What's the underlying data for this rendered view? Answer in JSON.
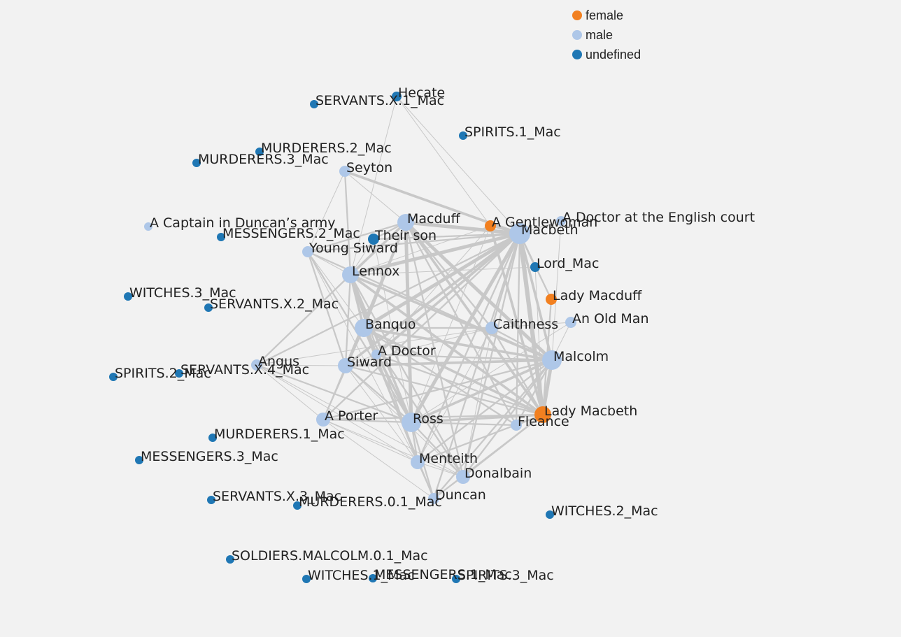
{
  "colors": {
    "female": "#f28020",
    "male": "#aec7e8",
    "undefined": "#1f77b4",
    "edge": "#c8c8c8",
    "background": "#f2f2f2"
  },
  "legend": [
    {
      "group": "female",
      "label": "female"
    },
    {
      "group": "male",
      "label": "male"
    },
    {
      "group": "undefined",
      "label": "undefined"
    }
  ],
  "nodes": [
    {
      "id": "Hecate",
      "label": "Hecate",
      "group": "undefined"
    },
    {
      "id": "SERVANTS.X.1_Mac",
      "label": "SERVANTS.X.1_Mac",
      "group": "undefined"
    },
    {
      "id": "SPIRITS.1_Mac",
      "label": "SPIRITS.1_Mac",
      "group": "undefined"
    },
    {
      "id": "MURDERERS.2_Mac",
      "label": "MURDERERS.2_Mac",
      "group": "undefined"
    },
    {
      "id": "MURDERERS.3_Mac",
      "label": "MURDERERS.3_Mac",
      "group": "undefined"
    },
    {
      "id": "Seyton",
      "label": "Seyton",
      "group": "male"
    },
    {
      "id": "A Captain in Duncan's army",
      "label": "A Captain in Duncan’s army",
      "group": "male"
    },
    {
      "id": "MESSENGERS.2_Mac",
      "label": "MESSENGERS.2_Mac",
      "group": "undefined"
    },
    {
      "id": "Macduff",
      "label": "Macduff",
      "group": "male"
    },
    {
      "id": "Their son",
      "label": "Their son",
      "group": "undefined"
    },
    {
      "id": "A Gentlewoman",
      "label": "A Gentlewoman",
      "group": "female"
    },
    {
      "id": "Macbeth",
      "label": "Macbeth",
      "group": "male"
    },
    {
      "id": "A Doctor at the English court",
      "label": "A Doctor at the English court",
      "group": "male"
    },
    {
      "id": "Young Siward",
      "label": "Young Siward",
      "group": "male"
    },
    {
      "id": "Lennox",
      "label": "Lennox",
      "group": "male"
    },
    {
      "id": "Lord_Mac",
      "label": "Lord_Mac",
      "group": "undefined"
    },
    {
      "id": "WITCHES.3_Mac",
      "label": "WITCHES.3_Mac",
      "group": "undefined"
    },
    {
      "id": "SERVANTS.X.2_Mac",
      "label": "SERVANTS.X.2_Mac",
      "group": "undefined"
    },
    {
      "id": "Lady Macduff",
      "label": "Lady Macduff",
      "group": "female"
    },
    {
      "id": "Banquo",
      "label": "Banquo",
      "group": "male"
    },
    {
      "id": "Caithness",
      "label": "Caithness",
      "group": "male"
    },
    {
      "id": "An Old Man",
      "label": "An Old Man",
      "group": "male"
    },
    {
      "id": "A Doctor",
      "label": "A Doctor",
      "group": "male"
    },
    {
      "id": "Malcolm",
      "label": "Malcolm",
      "group": "male"
    },
    {
      "id": "Angus",
      "label": "Angus",
      "group": "male"
    },
    {
      "id": "Siward",
      "label": "Siward",
      "group": "male"
    },
    {
      "id": "SPIRITS.2_Mac",
      "label": "SPIRITS.2_Mac",
      "group": "undefined"
    },
    {
      "id": "SERVANTS.X.4_Mac",
      "label": "SERVANTS.X.4_Mac",
      "group": "undefined"
    },
    {
      "id": "Lady Macbeth",
      "label": "Lady Macbeth",
      "group": "female"
    },
    {
      "id": "A Porter",
      "label": "A Porter",
      "group": "male"
    },
    {
      "id": "Ross",
      "label": "Ross",
      "group": "male"
    },
    {
      "id": "Fleance",
      "label": "Fleance",
      "group": "male"
    },
    {
      "id": "MURDERERS.1_Mac",
      "label": "MURDERERS.1_Mac",
      "group": "undefined"
    },
    {
      "id": "MESSENGERS.3_Mac",
      "label": "MESSENGERS.3_Mac",
      "group": "undefined"
    },
    {
      "id": "Menteith",
      "label": "Menteith",
      "group": "male"
    },
    {
      "id": "Donalbain",
      "label": "Donalbain",
      "group": "male"
    },
    {
      "id": "Duncan",
      "label": "Duncan",
      "group": "male"
    },
    {
      "id": "SERVANTS.X.3_Mac",
      "label": "SERVANTS.X.3_Mac",
      "group": "undefined"
    },
    {
      "id": "MURDERERS.0.1_Mac",
      "label": "MURDERERS.0.1_Mac",
      "group": "undefined"
    },
    {
      "id": "WITCHES.2_Mac",
      "label": "WITCHES.2_Mac",
      "group": "undefined"
    },
    {
      "id": "SOLDIERS.MALCOLM.0.1_Mac",
      "label": "SOLDIERS.MALCOLM.0.1_Mac",
      "group": "undefined"
    },
    {
      "id": "WITCHES.1_Mac",
      "label": "WITCHES.1_Mac",
      "group": "undefined"
    },
    {
      "id": "MESSENGERS.1_Mac",
      "label": "MESSENGERS.1_Mac",
      "group": "undefined"
    },
    {
      "id": "SPIRITS.3_Mac",
      "label": "SPIRITS.3_Mac",
      "group": "undefined"
    }
  ],
  "links": [
    [
      "Macbeth",
      "Lady Macbeth",
      5
    ],
    [
      "Macbeth",
      "Banquo",
      4
    ],
    [
      "Macbeth",
      "Macduff",
      4
    ],
    [
      "Macbeth",
      "Ross",
      4
    ],
    [
      "Macbeth",
      "Malcolm",
      3
    ],
    [
      "Macbeth",
      "Lennox",
      4
    ],
    [
      "Macbeth",
      "Seyton",
      3
    ],
    [
      "Macbeth",
      "Siward",
      3
    ],
    [
      "Macbeth",
      "A Doctor",
      3
    ],
    [
      "Macbeth",
      "Fleance",
      2
    ],
    [
      "Macbeth",
      "Donalbain",
      2
    ],
    [
      "Macbeth",
      "Menteith",
      2
    ],
    [
      "Macbeth",
      "Angus",
      2
    ],
    [
      "Macbeth",
      "Caithness",
      2
    ],
    [
      "Macbeth",
      "A Gentlewoman",
      2
    ],
    [
      "Macbeth",
      "Young Siward",
      2
    ],
    [
      "Macbeth",
      "Hecate",
      1
    ],
    [
      "Macbeth",
      "Duncan",
      2
    ],
    [
      "Macbeth",
      "A Porter",
      2
    ],
    [
      "Macbeth",
      "Their son",
      2
    ],
    [
      "Macbeth",
      "Lord_Mac",
      2
    ],
    [
      "Macbeth",
      "A Doctor at the English court",
      1
    ],
    [
      "Macbeth",
      "Lady Macduff",
      2
    ],
    [
      "Malcolm",
      "Macduff",
      4
    ],
    [
      "Malcolm",
      "Ross",
      3
    ],
    [
      "Malcolm",
      "Lennox",
      3
    ],
    [
      "Malcolm",
      "Siward",
      3
    ],
    [
      "Malcolm",
      "Banquo",
      3
    ],
    [
      "Malcolm",
      "Lady Macbeth",
      4
    ],
    [
      "Malcolm",
      "Donalbain",
      2
    ],
    [
      "Malcolm",
      "Menteith",
      2
    ],
    [
      "Malcolm",
      "Caithness",
      2
    ],
    [
      "Malcolm",
      "A Doctor",
      2
    ],
    [
      "Malcolm",
      "A Doctor at the English court",
      1
    ],
    [
      "Malcolm",
      "Young Siward",
      2
    ],
    [
      "Malcolm",
      "Duncan",
      2
    ],
    [
      "Malcolm",
      "A Porter",
      2
    ],
    [
      "Malcolm",
      "Fleance",
      2
    ],
    [
      "Banquo",
      "Lady Macbeth",
      3
    ],
    [
      "Banquo",
      "Ross",
      3
    ],
    [
      "Banquo",
      "Lennox",
      3
    ],
    [
      "Banquo",
      "Macduff",
      3
    ],
    [
      "Banquo",
      "Fleance",
      2
    ],
    [
      "Banquo",
      "Donalbain",
      2
    ],
    [
      "Banquo",
      "A Porter",
      2
    ],
    [
      "Banquo",
      "Siward",
      2
    ],
    [
      "Banquo",
      "Caithness",
      2
    ],
    [
      "Banquo",
      "Menteith",
      2
    ],
    [
      "Banquo",
      "Duncan",
      2
    ],
    [
      "Ross",
      "Macduff",
      4
    ],
    [
      "Ross",
      "Lennox",
      3
    ],
    [
      "Ross",
      "Lady Macbeth",
      3
    ],
    [
      "Ross",
      "Siward",
      2
    ],
    [
      "Ross",
      "Menteith",
      2
    ],
    [
      "Ross",
      "Donalbain",
      2
    ],
    [
      "Ross",
      "Angus",
      2
    ],
    [
      "Ross",
      "A Porter",
      2
    ],
    [
      "Ross",
      "A Doctor",
      2
    ],
    [
      "Ross",
      "Fleance",
      2
    ],
    [
      "Ross",
      "Duncan",
      2
    ],
    [
      "Ross",
      "Young Siward",
      2
    ],
    [
      "Macduff",
      "Lennox",
      3
    ],
    [
      "Macduff",
      "Lady Macbeth",
      3
    ],
    [
      "Macduff",
      "Their son",
      2
    ],
    [
      "Macduff",
      "Young Siward",
      2
    ],
    [
      "Macduff",
      "Siward",
      2
    ],
    [
      "Macduff",
      "Fleance",
      2
    ],
    [
      "Macduff",
      "Donalbain",
      2
    ],
    [
      "Macduff",
      "Caithness",
      2
    ],
    [
      "Lennox",
      "Lady Macbeth",
      3
    ],
    [
      "Lennox",
      "Menteith",
      2
    ],
    [
      "Lennox",
      "Siward",
      2
    ],
    [
      "Lennox",
      "Seyton",
      2
    ],
    [
      "Lennox",
      "Angus",
      2
    ],
    [
      "Lennox",
      "Donalbain",
      2
    ],
    [
      "Lennox",
      "A Doctor",
      2
    ],
    [
      "Lennox",
      "Young Siward",
      1
    ],
    [
      "Lennox",
      "Hecate",
      1
    ],
    [
      "Lady Macbeth",
      "A Gentlewoman",
      3
    ],
    [
      "Lady Macbeth",
      "A Doctor",
      2
    ],
    [
      "Lady Macbeth",
      "Fleance",
      2
    ],
    [
      "Lady Macbeth",
      "Donalbain",
      2
    ],
    [
      "Lady Macbeth",
      "Menteith",
      2
    ],
    [
      "Lady Macbeth",
      "Siward",
      2
    ],
    [
      "Lady Macbeth",
      "Caithness",
      2
    ],
    [
      "Lady Macbeth",
      "A Porter",
      2
    ],
    [
      "Lady Macbeth",
      "Duncan",
      2
    ],
    [
      "Lady Macbeth",
      "Lady Macduff",
      2
    ],
    [
      "Lady Macbeth",
      "Lord_Mac",
      1
    ],
    [
      "Siward",
      "Young Siward",
      2
    ],
    [
      "Siward",
      "Menteith",
      1
    ],
    [
      "Siward",
      "A Porter",
      1
    ],
    [
      "Siward",
      "Angus",
      1
    ],
    [
      "Siward",
      "Caithness",
      1
    ],
    [
      "Siward",
      "Donalbain",
      1
    ],
    [
      "Caithness",
      "Menteith",
      1
    ],
    [
      "Caithness",
      "Angus",
      1
    ],
    [
      "Caithness",
      "Donalbain",
      1
    ],
    [
      "Caithness",
      "An Old Man",
      1
    ],
    [
      "Menteith",
      "Donalbain",
      1
    ],
    [
      "Menteith",
      "Angus",
      1
    ],
    [
      "Menteith",
      "A Porter",
      1
    ],
    [
      "Menteith",
      "Duncan",
      1
    ],
    [
      "Donalbain",
      "Duncan",
      1
    ],
    [
      "Donalbain",
      "A Porter",
      1
    ],
    [
      "A Porter",
      "Angus",
      1
    ],
    [
      "A Porter",
      "Duncan",
      1
    ],
    [
      "A Doctor",
      "Siward",
      1
    ],
    [
      "A Doctor",
      "Menteith",
      1
    ],
    [
      "A Doctor",
      "A Gentlewoman",
      1
    ],
    [
      "Hecate",
      "A Gentlewoman",
      1
    ],
    [
      "Seyton",
      "Macduff",
      1
    ],
    [
      "Seyton",
      "Young Siward",
      1
    ],
    [
      "An Old Man",
      "Ross",
      1
    ],
    [
      "An Old Man",
      "Malcolm",
      1
    ],
    [
      "Their son",
      "Lennox",
      1
    ],
    [
      "Their son",
      "Ross",
      1
    ],
    [
      "Young Siward",
      "Banquo",
      1
    ],
    [
      "Young Siward",
      "Menteith",
      1
    ],
    [
      "Lord_Mac",
      "Lennox",
      1
    ],
    [
      "A Gentlewoman",
      "Ross",
      1
    ],
    [
      "A Gentlewoman",
      "Lennox",
      1
    ],
    [
      "Angus",
      "Donalbain",
      1
    ]
  ]
}
